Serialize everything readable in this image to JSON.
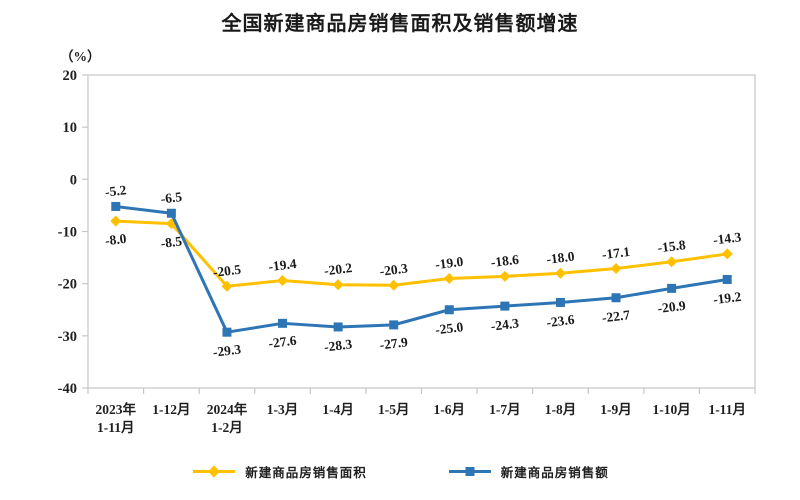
{
  "title": "全国新建商品房销售面积及销售额增速",
  "y_axis_unit": "（%）",
  "chart_data": {
    "type": "line",
    "title": "全国新建商品房销售面积及销售额增速",
    "ylabel": "（%）",
    "xlabel": "",
    "ylim": [
      -40,
      20
    ],
    "y_ticks": [
      20,
      10,
      0,
      -10,
      -20,
      -30,
      -40
    ],
    "grid": false,
    "legend_position": "bottom",
    "axis_color": "#c6c6c6",
    "text_color": "#1f1f1f",
    "categories": [
      "2023年\n1-11月",
      "1-12月",
      "2024年\n1-2月",
      "1-3月",
      "1-4月",
      "1-5月",
      "1-6月",
      "1-7月",
      "1-8月",
      "1-9月",
      "1-10月",
      "1-11月"
    ],
    "series": [
      {
        "name": "新建商品房销售面积",
        "color": "#FFC000",
        "marker": "diamond",
        "values": [
          -8.0,
          -8.5,
          -20.5,
          -19.4,
          -20.2,
          -20.3,
          -19.0,
          -18.6,
          -18.0,
          -17.1,
          -15.8,
          -14.3
        ],
        "label_side": [
          "below",
          "below",
          "above",
          "above",
          "above",
          "above",
          "above",
          "above",
          "above",
          "above",
          "above",
          "above"
        ]
      },
      {
        "name": "新建商品房销售额",
        "color": "#2E75B6",
        "marker": "square",
        "values": [
          -5.2,
          -6.5,
          -29.3,
          -27.6,
          -28.3,
          -27.9,
          -25.0,
          -24.3,
          -23.6,
          -22.7,
          -20.9,
          -19.2
        ],
        "label_side": [
          "above",
          "above",
          "below",
          "below",
          "below",
          "below",
          "below",
          "below",
          "below",
          "below",
          "below",
          "below"
        ]
      }
    ]
  }
}
